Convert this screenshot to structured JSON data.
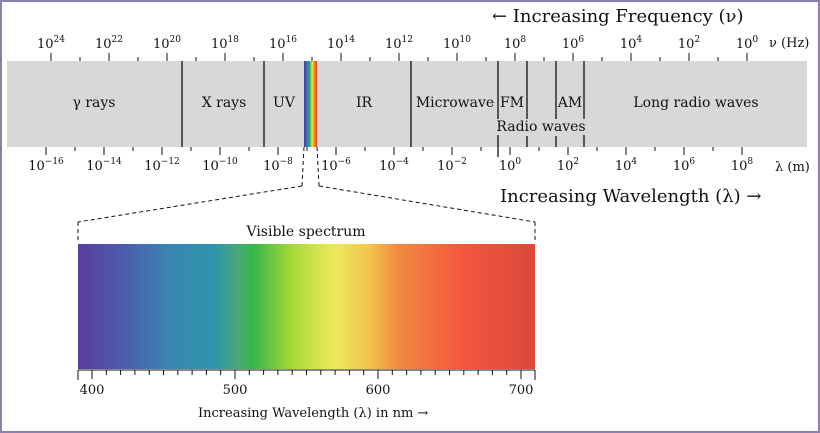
{
  "frequency_axis": {
    "title": "← Increasing Frequency (ν)",
    "unit": "ν (Hz)",
    "ticks": [
      {
        "base": "10",
        "exp": "24"
      },
      {
        "base": "10",
        "exp": "22"
      },
      {
        "base": "10",
        "exp": "20"
      },
      {
        "base": "10",
        "exp": "18"
      },
      {
        "base": "10",
        "exp": "16"
      },
      {
        "base": "10",
        "exp": "14"
      },
      {
        "base": "10",
        "exp": "12"
      },
      {
        "base": "10",
        "exp": "10"
      },
      {
        "base": "10",
        "exp": "8"
      },
      {
        "base": "10",
        "exp": "6"
      },
      {
        "base": "10",
        "exp": "4"
      },
      {
        "base": "10",
        "exp": "2"
      },
      {
        "base": "10",
        "exp": "0"
      }
    ]
  },
  "wavelength_axis": {
    "title": "Increasing Wavelength (λ) →",
    "unit": "λ (m)",
    "ticks": [
      {
        "base": "10",
        "exp": "−16"
      },
      {
        "base": "10",
        "exp": "−14"
      },
      {
        "base": "10",
        "exp": "−12"
      },
      {
        "base": "10",
        "exp": "−10"
      },
      {
        "base": "10",
        "exp": "−8"
      },
      {
        "base": "10",
        "exp": "−6"
      },
      {
        "base": "10",
        "exp": "−4"
      },
      {
        "base": "10",
        "exp": "−2"
      },
      {
        "base": "10",
        "exp": "0"
      },
      {
        "base": "10",
        "exp": "2"
      },
      {
        "base": "10",
        "exp": "4"
      },
      {
        "base": "10",
        "exp": "6"
      },
      {
        "base": "10",
        "exp": "8"
      }
    ]
  },
  "bands": {
    "gamma": "γ rays",
    "xray": "X rays",
    "uv": "UV",
    "ir": "IR",
    "microwave": "Microwave",
    "fm": "FM",
    "am": "AM",
    "radio": "Radio waves",
    "long_radio": "Long radio waves"
  },
  "visible": {
    "title": "Visible spectrum",
    "axis_title": "Increasing Wavelength (λ) in nm →",
    "ticks": [
      "400",
      "500",
      "600",
      "700"
    ]
  },
  "colors": {
    "band_background": "#d8d8d8",
    "border": "#8d7fb0"
  }
}
